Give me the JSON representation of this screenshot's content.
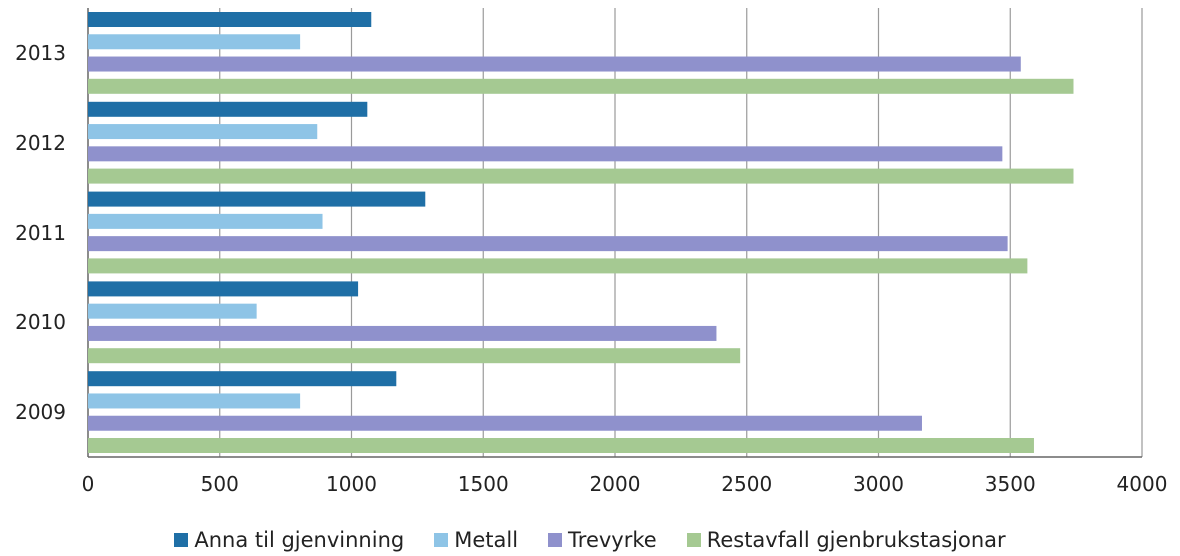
{
  "chart_data": {
    "type": "bar",
    "orientation": "horizontal",
    "categories": [
      "2013",
      "2012",
      "2011",
      "2010",
      "2009"
    ],
    "series": [
      {
        "name": "Anna til gjenvinning",
        "color": "#1f6fa6",
        "values": [
          1075,
          1060,
          1280,
          1025,
          1170
        ]
      },
      {
        "name": "Metall",
        "color": "#8ec4e6",
        "values": [
          805,
          870,
          890,
          640,
          805
        ]
      },
      {
        "name": "Trevyrke",
        "color": "#8f91cc",
        "values": [
          3540,
          3470,
          3490,
          2385,
          3165
        ]
      },
      {
        "name": "Restavfall gjenbrukstasjonar",
        "color": "#a5c992",
        "values": [
          3740,
          3740,
          3565,
          2475,
          3590
        ]
      }
    ],
    "xlim": [
      0,
      4000
    ],
    "xticks": [
      "0",
      "500",
      "1000",
      "1500",
      "2000",
      "2500",
      "3000",
      "3500",
      "4000"
    ],
    "grid": true,
    "legend": "bottom",
    "title": "",
    "xlabel": "",
    "ylabel": ""
  }
}
